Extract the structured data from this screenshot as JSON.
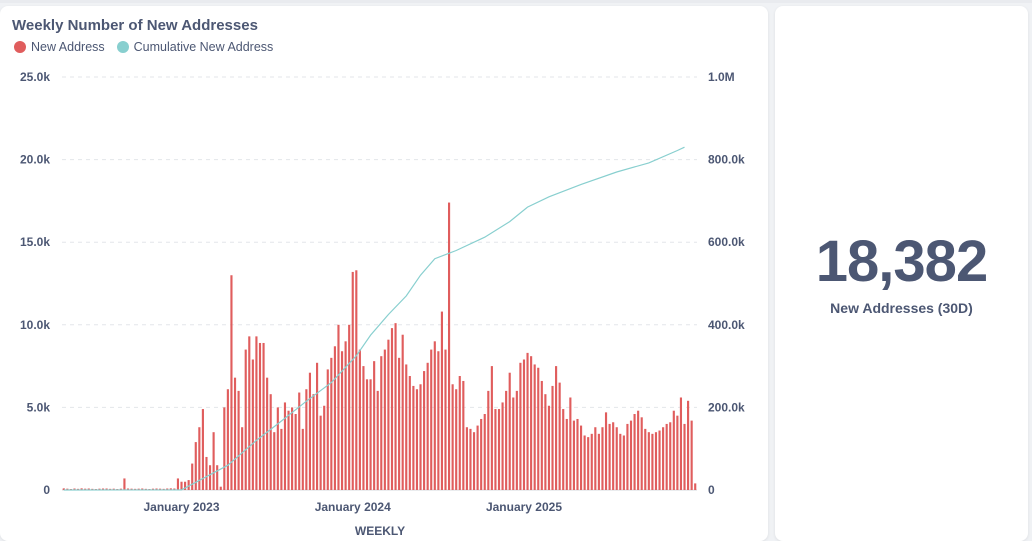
{
  "chart_card": {
    "title": "Weekly Number of New Addresses"
  },
  "kpi": {
    "value": "18,382",
    "label": "New Addresses (30D)"
  },
  "colors": {
    "bar": "#e05d5d",
    "line": "#88cfcf",
    "grid": "#e3e6ea",
    "text": "#4c5773"
  },
  "chart_data": {
    "type": "bar",
    "title": "Weekly Number of New Addresses",
    "xlabel": "WEEKLY",
    "ylabel": "",
    "legend": [
      "New Address",
      "Cumulative New Address"
    ],
    "legend_position": "top-left",
    "x_ticks": [
      "January 2023",
      "January 2024",
      "January 2025"
    ],
    "y_left_ticks": [
      "0",
      "5.0k",
      "10.0k",
      "15.0k",
      "20.0k",
      "25.0k"
    ],
    "y_right_ticks": [
      "0",
      "200.0k",
      "400.0k",
      "600.0k",
      "800.0k",
      "1.0M"
    ],
    "ylim_left": [
      0,
      25000
    ],
    "ylim_right": [
      0,
      1000000
    ],
    "grid": true,
    "series": [
      {
        "name": "New Address",
        "type": "bar",
        "axis": "left",
        "values": [
          100,
          80,
          60,
          90,
          70,
          100,
          80,
          90,
          70,
          60,
          80,
          90,
          90,
          70,
          80,
          60,
          80,
          700,
          90,
          80,
          70,
          80,
          90,
          70,
          60,
          80,
          90,
          80,
          70,
          90,
          100,
          90,
          700,
          500,
          500,
          600,
          1600,
          2900,
          3800,
          4900,
          2000,
          1500,
          3500,
          1500,
          200,
          5000,
          6100,
          13000,
          6800,
          6000,
          3800,
          8500,
          9300,
          7900,
          9300,
          8900,
          8900,
          6800,
          5800,
          3500,
          5000,
          3700,
          5300,
          4800,
          5000,
          4600,
          5900,
          3700,
          6100,
          7100,
          5800,
          7700,
          4500,
          5100,
          7300,
          8000,
          8700,
          10000,
          8400,
          9000,
          10000,
          13200,
          13300,
          8500,
          7500,
          6700,
          6700,
          7800,
          6000,
          8100,
          8500,
          9100,
          9800,
          10100,
          8000,
          9400,
          7600,
          6900,
          6300,
          6100,
          6400,
          7200,
          7700,
          8500,
          9000,
          8400,
          10800,
          8500,
          17400,
          6400,
          6100,
          6900,
          6600,
          3800,
          3700,
          3500,
          3900,
          4300,
          4600,
          6000,
          7500,
          4900,
          4900,
          5300,
          6000,
          7100,
          5600,
          6000,
          7700,
          7900,
          8300,
          8100,
          7600,
          7400,
          6600,
          5800,
          5100,
          6300,
          7500,
          6500,
          4900,
          4300,
          5600,
          4200,
          4300,
          3900,
          3300,
          3200,
          3400,
          3800,
          3400,
          3800,
          4700,
          4000,
          4100,
          3800,
          3400,
          3300,
          4000,
          4200,
          4600,
          4800,
          4400,
          3700,
          3500,
          3400,
          3500,
          3600,
          3800,
          4000,
          4100,
          4800,
          4500,
          5600,
          4000,
          5400,
          4200,
          400
        ]
      },
      {
        "name": "Cumulative New Address",
        "type": "line",
        "axis": "right",
        "points": [
          [
            0,
            0
          ],
          [
            33,
            200
          ],
          [
            46,
            60000
          ],
          [
            54,
            120000
          ],
          [
            60,
            160000
          ],
          [
            68,
            215000
          ],
          [
            75,
            260000
          ],
          [
            82,
            325000
          ],
          [
            86,
            375000
          ],
          [
            91,
            425000
          ],
          [
            96,
            470000
          ],
          [
            100,
            520000
          ],
          [
            104,
            560000
          ],
          [
            110,
            580000
          ],
          [
            118,
            612000
          ],
          [
            125,
            650000
          ],
          [
            130,
            685000
          ],
          [
            136,
            710000
          ],
          [
            145,
            740000
          ],
          [
            155,
            770000
          ],
          [
            164,
            792000
          ],
          [
            172,
            822000
          ],
          [
            174,
            830000
          ]
        ]
      }
    ]
  }
}
